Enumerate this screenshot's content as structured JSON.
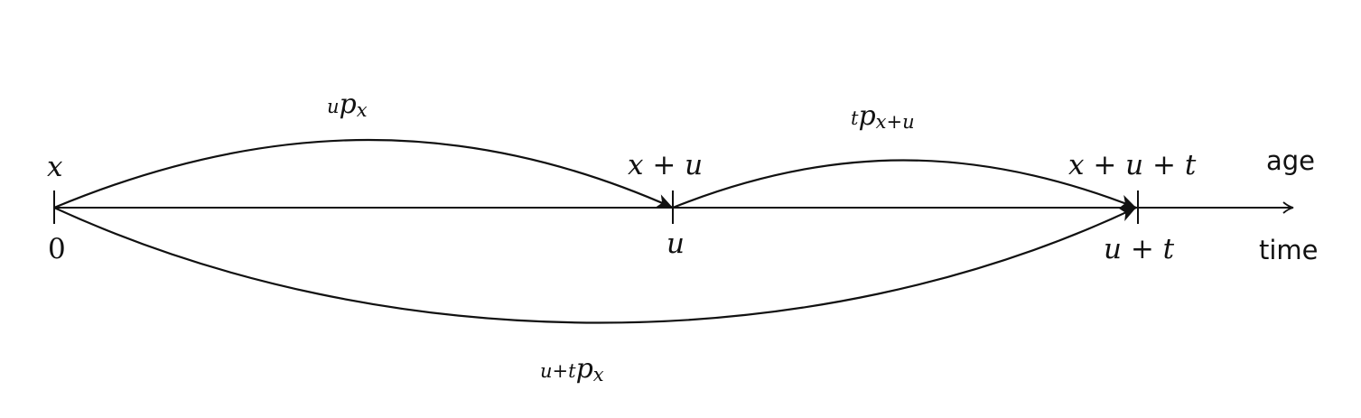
{
  "axis": {
    "age_label": "age",
    "time_label": "time"
  },
  "ticks": [
    {
      "age": "x",
      "time": "0"
    },
    {
      "age": "x + u",
      "time": "u"
    },
    {
      "age": "x + u + t",
      "time": "u + t"
    }
  ],
  "arcs": [
    {
      "pre": "u",
      "main": "p",
      "post": "x"
    },
    {
      "pre": "t",
      "main": "p",
      "post": "x+u"
    },
    {
      "pre": "u+t",
      "main": "p",
      "post": "x"
    }
  ],
  "colors": {
    "ink": "#111111",
    "background": "#ffffff"
  }
}
